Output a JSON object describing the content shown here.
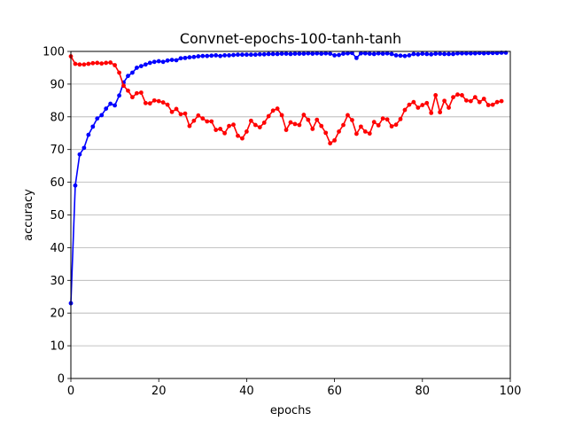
{
  "chart_data": {
    "type": "line",
    "title": "Convnet-epochs-100-tanh-tanh",
    "xlabel": "epochs",
    "ylabel": "accuracy",
    "xlim": [
      0,
      100
    ],
    "ylim": [
      0,
      100
    ],
    "xticks": [
      0,
      20,
      40,
      60,
      80,
      100
    ],
    "yticks": [
      0,
      10,
      20,
      30,
      40,
      50,
      60,
      70,
      80,
      90,
      100
    ],
    "grid": "horizontal",
    "legend": "none",
    "series": [
      {
        "color": "#0000ff",
        "marker": "circle",
        "x": [
          0,
          1,
          2,
          3,
          4,
          5,
          6,
          7,
          8,
          9,
          10,
          11,
          12,
          13,
          14,
          15,
          16,
          17,
          18,
          19,
          20,
          21,
          22,
          23,
          24,
          25,
          26,
          27,
          28,
          29,
          30,
          31,
          32,
          33,
          34,
          35,
          36,
          37,
          38,
          39,
          40,
          41,
          42,
          43,
          44,
          45,
          46,
          47,
          48,
          49,
          50,
          51,
          52,
          53,
          54,
          55,
          56,
          57,
          58,
          59,
          60,
          61,
          62,
          63,
          64,
          65,
          66,
          67,
          68,
          69,
          70,
          71,
          72,
          73,
          74,
          75,
          76,
          77,
          78,
          79,
          80,
          81,
          82,
          83,
          84,
          85,
          86,
          87,
          88,
          89,
          90,
          91,
          92,
          93,
          94,
          95,
          96,
          97,
          98,
          99
        ],
        "values": [
          23,
          59,
          68.5,
          70.5,
          74.5,
          77,
          79.5,
          80.5,
          82.5,
          84,
          83.5,
          86.5,
          90.5,
          92.5,
          93.5,
          95,
          95.5,
          96,
          96.5,
          96.8,
          97,
          96.8,
          97.2,
          97.4,
          97.3,
          97.9,
          98,
          98.2,
          98.3,
          98.5,
          98.6,
          98.6,
          98.7,
          98.8,
          98.6,
          98.8,
          98.8,
          98.9,
          99,
          99,
          99,
          99,
          99,
          99.1,
          99.1,
          99.2,
          99.2,
          99.2,
          99.3,
          99.3,
          99.2,
          99.3,
          99.3,
          99.3,
          99.4,
          99.3,
          99.4,
          99.3,
          99.4,
          99.3,
          98.8,
          98.9,
          99.3,
          99.4,
          99.5,
          98,
          99.4,
          99.4,
          99.3,
          99.2,
          99.4,
          99.3,
          99.4,
          99.2,
          98.8,
          98.7,
          98.6,
          98.8,
          99.2,
          99.1,
          99.3,
          99.2,
          99.1,
          99.3,
          99.3,
          99.2,
          99.2,
          99.2,
          99.4,
          99.4,
          99.4,
          99.4,
          99.4,
          99.5,
          99.4,
          99.5,
          99.5,
          99.5,
          99.6,
          99.6
        ]
      },
      {
        "color": "#ff0000",
        "marker": "circle",
        "x": [
          0,
          1,
          2,
          3,
          4,
          5,
          6,
          7,
          8,
          9,
          10,
          11,
          12,
          13,
          14,
          15,
          16,
          17,
          18,
          19,
          20,
          21,
          22,
          23,
          24,
          25,
          26,
          27,
          28,
          29,
          30,
          31,
          32,
          33,
          34,
          35,
          36,
          37,
          38,
          39,
          40,
          41,
          42,
          43,
          44,
          45,
          46,
          47,
          48,
          49,
          50,
          51,
          52,
          53,
          54,
          55,
          56,
          57,
          58,
          59,
          60,
          61,
          62,
          63,
          64,
          65,
          66,
          67,
          68,
          69,
          70,
          71,
          72,
          73,
          74,
          75,
          76,
          77,
          78,
          79,
          80,
          81,
          82,
          83,
          84,
          85,
          86,
          87,
          88,
          89,
          90,
          91,
          92,
          93,
          94,
          95,
          96,
          97,
          98,
          99
        ],
        "values": [
          98.5,
          96.2,
          96,
          96,
          96.2,
          96.4,
          96.5,
          96.3,
          96.5,
          96.6,
          95.8,
          93.5,
          89.5,
          88,
          86,
          87.2,
          87.4,
          84.2,
          84.1,
          85,
          84.8,
          84.4,
          83.7,
          81.5,
          82.4,
          80.8,
          81,
          77.2,
          78.8,
          80.4,
          79.5,
          78.6,
          78.6,
          76,
          76.3,
          75,
          77.2,
          77.6,
          74.2,
          73.4,
          75.5,
          78.8,
          77.5,
          76.8,
          78.2,
          80.2,
          81.9,
          82.5,
          80.5,
          76,
          78.3,
          77.8,
          77.5,
          80.6,
          79.1,
          76.3,
          79.1,
          77.2,
          75.1,
          71.9,
          72.8,
          75.5,
          77.5,
          80.5,
          79,
          74.8,
          77,
          75.5,
          74.9,
          78.4,
          77.4,
          79.5,
          79.2,
          77.1,
          77.6,
          79.3,
          82.1,
          83.7,
          84.5,
          82.8,
          83.6,
          84.2,
          81.2,
          86.6,
          81.4,
          84.9,
          82.8,
          86,
          86.8,
          86.6,
          85,
          84.8,
          86,
          84.5,
          85.5,
          83.6,
          83.7,
          84.5,
          84.8,
          null
        ]
      }
    ]
  }
}
